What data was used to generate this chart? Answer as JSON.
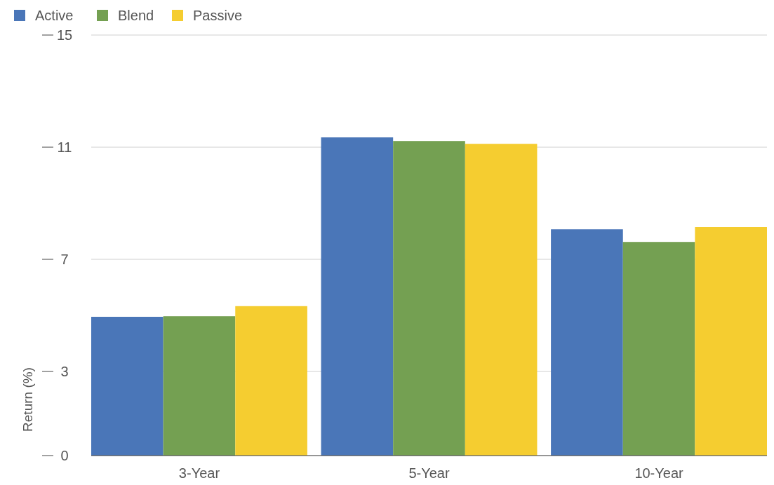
{
  "chart_data": {
    "type": "bar",
    "categories": [
      "3-Year",
      "5-Year",
      "10-Year"
    ],
    "series": [
      {
        "name": "Active",
        "color": "#4a76b8",
        "values": [
          4.95,
          11.35,
          8.07
        ]
      },
      {
        "name": "Blend",
        "color": "#74a052",
        "values": [
          4.97,
          11.22,
          7.62
        ]
      },
      {
        "name": "Passive",
        "color": "#f5cd30",
        "values": [
          5.33,
          11.12,
          8.15
        ]
      }
    ],
    "ylabel": "Return (%)",
    "ylim": [
      0,
      15
    ],
    "yticks": [
      0,
      3,
      7,
      11,
      15
    ],
    "grid": "y",
    "legend": "top left"
  }
}
